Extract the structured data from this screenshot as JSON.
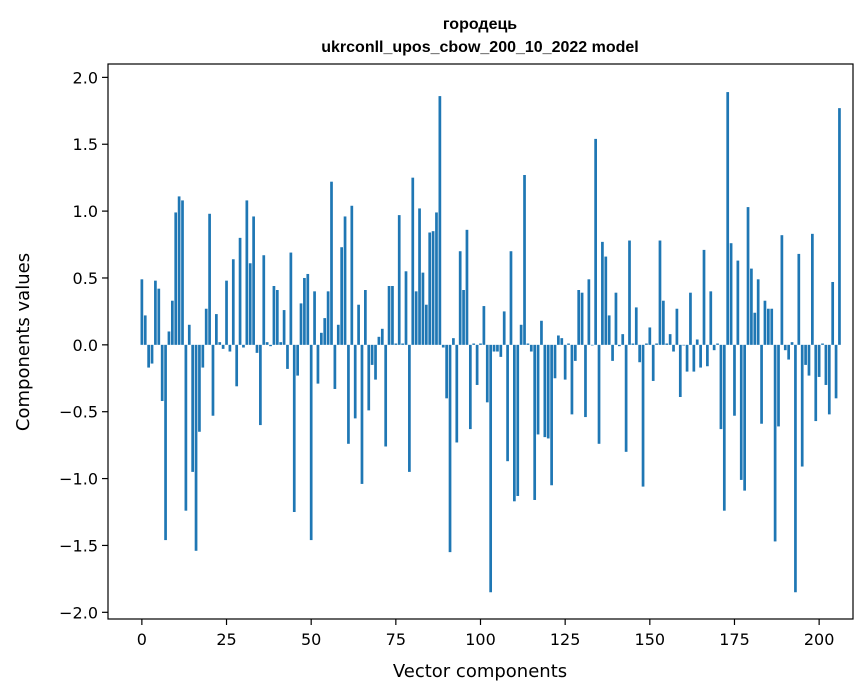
{
  "chart_data": {
    "type": "bar",
    "title": "городець",
    "subtitle": "ukrconll_upos_cbow_200_10_2022 model",
    "xlabel": "Vector components",
    "ylabel": "Components values",
    "xlim": [
      -10,
      210
    ],
    "ylim": [
      -2.05,
      2.1
    ],
    "xticks": [
      0,
      25,
      50,
      75,
      100,
      125,
      150,
      175,
      200
    ],
    "yticks": [
      -2.0,
      -1.5,
      -1.0,
      -0.5,
      0.0,
      0.5,
      1.0,
      1.5,
      2.0
    ],
    "ytick_labels": [
      "−2.0",
      "−1.5",
      "−1.0",
      "−0.5",
      "0.0",
      "0.5",
      "1.0",
      "1.5",
      "2.0"
    ],
    "grid": false,
    "color": "#1f77b4",
    "values": [
      0.49,
      0.22,
      -0.17,
      -0.14,
      0.48,
      0.42,
      -0.42,
      -1.46,
      0.1,
      0.33,
      0.99,
      1.11,
      1.08,
      -1.24,
      0.15,
      -0.95,
      -1.54,
      -0.65,
      -0.17,
      0.27,
      0.98,
      -0.53,
      0.23,
      0.02,
      -0.03,
      0.48,
      -0.05,
      0.64,
      -0.31,
      0.8,
      -0.02,
      1.08,
      0.61,
      0.96,
      -0.06,
      -0.6,
      0.67,
      0.02,
      -0.01,
      0.44,
      0.41,
      0.02,
      0.26,
      -0.18,
      0.69,
      -1.25,
      -0.23,
      0.31,
      0.5,
      0.53,
      -1.46,
      0.4,
      -0.29,
      0.09,
      0.2,
      0.4,
      1.22,
      -0.33,
      0.15,
      0.73,
      0.96,
      -0.74,
      1.04,
      -0.55,
      0.3,
      -1.04,
      0.41,
      -0.49,
      -0.15,
      -0.26,
      0.06,
      0.12,
      -0.76,
      0.44,
      0.44,
      0.01,
      0.97,
      0.01,
      0.55,
      -0.95,
      1.25,
      0.4,
      1.02,
      0.54,
      0.3,
      0.84,
      0.85,
      0.99,
      1.86,
      -0.02,
      -0.4,
      -1.55,
      0.05,
      -0.73,
      0.7,
      0.41,
      0.86,
      -0.63,
      0.01,
      -0.3,
      0.01,
      0.29,
      -0.43,
      -1.85,
      -0.05,
      -0.05,
      -0.09,
      0.25,
      -0.87,
      0.7,
      -1.17,
      -1.13,
      0.15,
      1.27,
      0.01,
      -0.05,
      -1.16,
      -0.67,
      0.18,
      -0.69,
      -0.7,
      -1.05,
      -0.25,
      0.07,
      0.05,
      -0.26,
      0.01,
      -0.52,
      -0.12,
      0.41,
      0.39,
      -0.54,
      0.49,
      0.0,
      1.54,
      -0.74,
      0.77,
      0.66,
      0.22,
      -0.12,
      0.39,
      -0.01,
      0.08,
      -0.8,
      0.78,
      0.01,
      0.28,
      -0.13,
      -1.06,
      0.01,
      0.13,
      -0.27,
      0.01,
      0.78,
      0.33,
      0.01,
      0.08,
      -0.05,
      0.27,
      -0.39,
      0.0,
      -0.2,
      0.39,
      -0.2,
      0.04,
      -0.17,
      0.71,
      -0.16,
      0.4,
      -0.04,
      0.01,
      -0.63,
      -1.24,
      1.89,
      0.76,
      -0.53,
      0.63,
      -1.01,
      -1.09,
      1.03,
      0.57,
      0.24,
      0.49,
      -0.59,
      0.33,
      0.27,
      0.27,
      -1.47,
      -0.61,
      0.82,
      -0.04,
      -0.11,
      0.02,
      -1.85,
      0.68,
      -0.91,
      -0.15,
      -0.23,
      0.83,
      -0.57,
      -0.24,
      0.01,
      -0.3,
      -0.52,
      0.47,
      -0.4,
      1.77
    ]
  }
}
